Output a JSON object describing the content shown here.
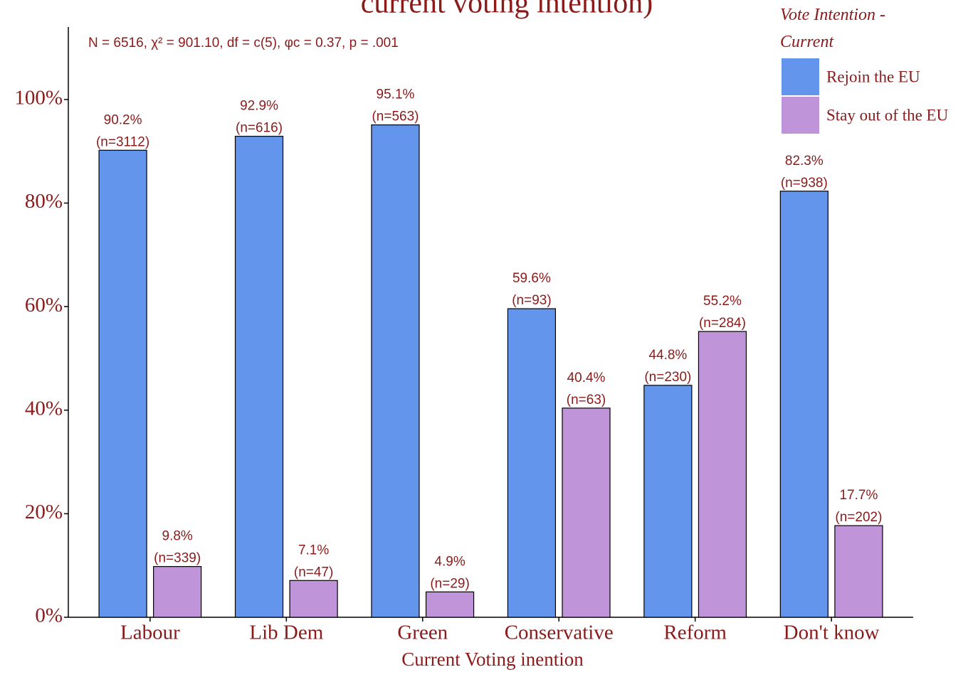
{
  "chart_data": {
    "type": "bar",
    "title": "current voting intention)",
    "annotation": "N = 6516, χ² = 901.10, df = c(5), φc = 0.37, p = .001",
    "x_label": "Current Voting inention",
    "legend_title": "Vote Intention - Current",
    "categories": [
      "Labour",
      "Lib Dem",
      "Green",
      "Conservative",
      "Reform",
      "Don't know"
    ],
    "series": [
      {
        "name": "Rejoin the EU",
        "color": "#6495ed",
        "values": [
          90.2,
          92.9,
          95.1,
          59.6,
          44.8,
          82.3
        ],
        "value_labels": [
          "90.2%",
          "92.9%",
          "95.1%",
          "59.6%",
          "44.8%",
          "82.3%"
        ],
        "count_labels": [
          "(n=3112)",
          "(n=616)",
          "(n=563)",
          "(n=93)",
          "(n=230)",
          "(n=938)"
        ]
      },
      {
        "name": "Stay out of the EU",
        "color": "#bf94d9",
        "values": [
          9.8,
          7.1,
          4.9,
          40.4,
          55.2,
          17.7
        ],
        "value_labels": [
          "9.8%",
          "7.1%",
          "4.9%",
          "40.4%",
          "55.2%",
          "17.7%"
        ],
        "count_labels": [
          "(n=339)",
          "(n=47)",
          "(n=29)",
          "(n=63)",
          "(n=284)",
          "(n=202)"
        ]
      }
    ],
    "ylim": [
      0,
      114
    ],
    "yticks": [
      {
        "value": 0,
        "label": "0%"
      },
      {
        "value": 20,
        "label": "20%"
      },
      {
        "value": 40,
        "label": "40%"
      },
      {
        "value": 60,
        "label": "60%"
      },
      {
        "value": 80,
        "label": "80%"
      },
      {
        "value": 100,
        "label": "100%"
      }
    ],
    "grid": false,
    "legend": "top-right"
  }
}
